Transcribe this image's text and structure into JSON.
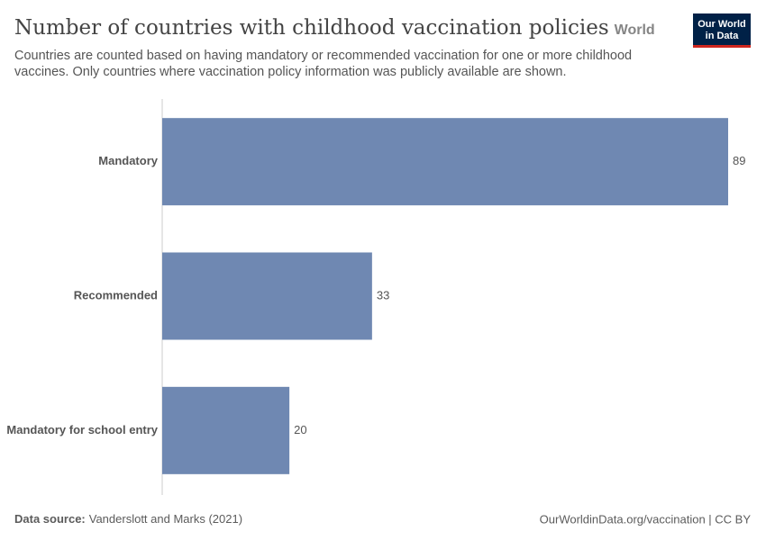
{
  "chart_data": {
    "type": "bar",
    "orientation": "horizontal",
    "title": "Number of countries with childhood vaccination policies",
    "entity": "World",
    "subtitle": [
      "Countries are counted based on having mandatory or recommended vaccination for one or more childhood",
      "vaccines. Only countries where vaccination policy information was publicly available are shown."
    ],
    "categories": [
      "Mandatory",
      "Recommended",
      "Mandatory for school entry"
    ],
    "values": [
      89,
      33,
      20
    ],
    "color": "#6f88b2",
    "logo": [
      "Our World",
      "in Data"
    ],
    "source_label": "Data source:",
    "source": "Vanderslott and Marks (2021)",
    "url": "OurWorldinData.org/vaccination | CC BY"
  }
}
